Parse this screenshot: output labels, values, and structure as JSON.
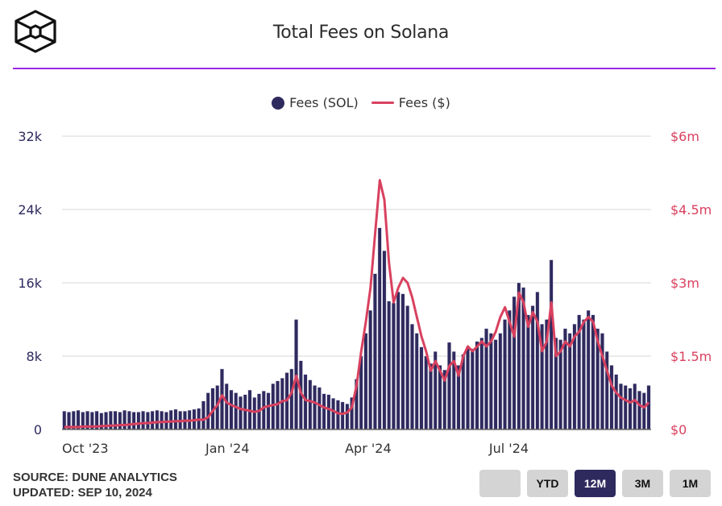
{
  "header": {
    "title": "Total Fees on Solana",
    "logo": "cube-logo-icon"
  },
  "footer": {
    "source": "SOURCE: DUNE ANALYTICS",
    "updated": "UPDATED: SEP 10, 2024"
  },
  "range_buttons": [
    {
      "label": "",
      "active": false
    },
    {
      "label": "YTD",
      "active": false
    },
    {
      "label": "12M",
      "active": true
    },
    {
      "label": "3M",
      "active": false
    },
    {
      "label": "1M",
      "active": false
    }
  ],
  "colors": {
    "bars": "#2e2a5e",
    "line": "#d9415f",
    "accent_divider": "#9b27e6",
    "left_axis": "#2e2a5e",
    "right_axis": "#d9415f"
  },
  "chart_data": {
    "type": "bar+line",
    "title": "Total Fees on Solana",
    "legend": [
      {
        "name": "Fees (SOL)",
        "marker": "dot"
      },
      {
        "name": "Fees ($)",
        "marker": "line"
      }
    ],
    "legend_position": "top-center",
    "x_ticks": [
      "Oct '23",
      "Jan '24",
      "Apr '24",
      "Jul '24"
    ],
    "x_tick_positions_days": [
      15,
      107,
      198,
      289
    ],
    "y_left": {
      "label": "Fees (SOL)",
      "ticks": [
        "0",
        "8k",
        "16k",
        "24k",
        "32k"
      ],
      "range": [
        0,
        32000
      ]
    },
    "y_right": {
      "label": "Fees ($)",
      "ticks": [
        "$0",
        "$1.5m",
        "$3m",
        "$4.5m",
        "$6m"
      ],
      "range": [
        0,
        6000000
      ]
    },
    "grid": true,
    "x_interval_days": 3,
    "series": [
      {
        "name": "Fees (SOL)",
        "type": "bar",
        "axis": "left",
        "unit": "thousand SOL",
        "values": [
          2.0,
          1.9,
          2.0,
          2.1,
          1.9,
          2.0,
          1.9,
          2.0,
          1.8,
          1.9,
          2.0,
          2.0,
          1.9,
          2.1,
          2.0,
          1.9,
          1.9,
          2.0,
          1.9,
          2.0,
          2.1,
          2.0,
          1.9,
          2.1,
          2.2,
          2.0,
          2.0,
          2.1,
          2.2,
          2.3,
          3.1,
          4.0,
          4.5,
          4.8,
          6.6,
          5.0,
          4.3,
          4.0,
          3.6,
          3.8,
          4.3,
          3.5,
          3.9,
          4.2,
          4.0,
          5.0,
          5.3,
          5.6,
          6.2,
          6.6,
          12.0,
          7.5,
          6.0,
          5.4,
          4.8,
          4.6,
          3.9,
          3.8,
          3.4,
          3.2,
          3.0,
          2.8,
          3.5,
          5.5,
          8.0,
          10.5,
          13.0,
          17.0,
          22.0,
          19.5,
          14.0,
          13.8,
          15.0,
          14.8,
          13.5,
          11.5,
          10.5,
          9.0,
          8.0,
          7.2,
          8.5,
          7.0,
          6.5,
          9.5,
          8.5,
          7.0,
          8.2,
          9.0,
          8.8,
          9.6,
          10.0,
          11.0,
          10.5,
          9.8,
          10.5,
          12.0,
          13.0,
          14.5,
          16.0,
          15.5,
          12.5,
          13.5,
          15.0,
          11.5,
          12.0,
          18.5,
          10.0,
          9.8,
          11.0,
          10.5,
          11.5,
          12.5,
          12.0,
          13.0,
          12.5,
          11.0,
          10.5,
          8.5,
          7.0,
          6.0,
          5.0,
          4.8,
          4.5,
          5.0,
          4.2,
          4.0,
          4.8
        ]
      },
      {
        "name": "Fees ($)",
        "type": "line",
        "axis": "right",
        "unit": "million USD",
        "values": [
          0.05,
          0.05,
          0.05,
          0.05,
          0.06,
          0.06,
          0.06,
          0.06,
          0.07,
          0.07,
          0.08,
          0.08,
          0.09,
          0.09,
          0.1,
          0.11,
          0.12,
          0.13,
          0.13,
          0.14,
          0.15,
          0.15,
          0.16,
          0.16,
          0.17,
          0.17,
          0.18,
          0.18,
          0.19,
          0.2,
          0.2,
          0.25,
          0.38,
          0.5,
          0.7,
          0.55,
          0.5,
          0.46,
          0.42,
          0.4,
          0.38,
          0.36,
          0.38,
          0.45,
          0.48,
          0.5,
          0.52,
          0.58,
          0.6,
          0.75,
          1.1,
          0.75,
          0.6,
          0.58,
          0.55,
          0.5,
          0.45,
          0.42,
          0.38,
          0.33,
          0.32,
          0.35,
          0.45,
          0.9,
          1.6,
          2.2,
          2.9,
          4.0,
          5.1,
          4.7,
          3.4,
          2.6,
          2.9,
          3.1,
          3.0,
          2.7,
          2.3,
          1.9,
          1.6,
          1.2,
          1.4,
          1.2,
          1.0,
          1.3,
          1.4,
          1.1,
          1.5,
          1.7,
          1.6,
          1.7,
          1.8,
          1.7,
          1.8,
          2.0,
          2.3,
          2.5,
          2.2,
          1.9,
          2.8,
          2.6,
          2.1,
          2.4,
          2.2,
          1.6,
          1.8,
          2.6,
          1.5,
          1.6,
          1.8,
          1.7,
          1.9,
          2.0,
          2.2,
          2.3,
          2.2,
          1.8,
          1.5,
          1.2,
          0.9,
          0.75,
          0.65,
          0.6,
          0.55,
          0.6,
          0.5,
          0.45,
          0.55
        ]
      }
    ]
  }
}
